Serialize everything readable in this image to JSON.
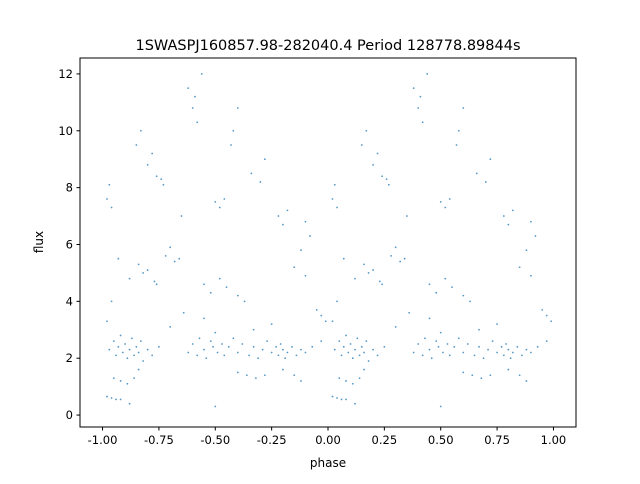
{
  "chart_data": {
    "type": "scatter",
    "title": "1SWASPJ160857.98-282040.4 Period 128778.89844s",
    "xlabel": "phase",
    "ylabel": "flux",
    "xlim": [
      -1.1,
      1.1
    ],
    "ylim": [
      -0.42,
      12.56
    ],
    "xticks": [
      "-1.00",
      "-0.75",
      "-0.50",
      "-0.25",
      "0.00",
      "0.25",
      "0.50",
      "0.75",
      "1.00"
    ],
    "xtick_values": [
      -1,
      -0.75,
      -0.5,
      -0.25,
      0,
      0.25,
      0.5,
      0.75,
      1
    ],
    "yticks": [
      "0",
      "2",
      "4",
      "6",
      "8",
      "10",
      "12"
    ],
    "ytick_values": [
      0,
      2,
      4,
      6,
      8,
      10,
      12
    ],
    "grid": false,
    "marker_color": "#1f77b4",
    "points": [
      [
        -0.97,
        2.3
      ],
      [
        -0.95,
        2.6
      ],
      [
        -0.94,
        2.1
      ],
      [
        -0.93,
        2.4
      ],
      [
        -0.92,
        2.8
      ],
      [
        -0.91,
        2.2
      ],
      [
        -0.9,
        2.5
      ],
      [
        -0.89,
        2.0
      ],
      [
        -0.88,
        2.3
      ],
      [
        -0.87,
        2.7
      ],
      [
        -0.86,
        2.1
      ],
      [
        -0.85,
        2.4
      ],
      [
        -0.84,
        2.2
      ],
      [
        -0.83,
        2.6
      ],
      [
        -0.82,
        1.9
      ],
      [
        -0.8,
        2.3
      ],
      [
        -0.78,
        2.1
      ],
      [
        -0.75,
        2.4
      ],
      [
        -0.62,
        2.2
      ],
      [
        -0.6,
        2.5
      ],
      [
        -0.58,
        2.1
      ],
      [
        -0.57,
        2.7
      ],
      [
        -0.55,
        2.3
      ],
      [
        -0.54,
        2.0
      ],
      [
        -0.52,
        2.6
      ],
      [
        -0.51,
        2.4
      ],
      [
        -0.5,
        2.9
      ],
      [
        -0.49,
        2.2
      ],
      [
        -0.47,
        2.5
      ],
      [
        -0.46,
        2.1
      ],
      [
        -0.44,
        2.4
      ],
      [
        -0.42,
        2.7
      ],
      [
        -0.4,
        2.2
      ],
      [
        -0.38,
        2.5
      ],
      [
        -0.35,
        2.1
      ],
      [
        -0.33,
        2.4
      ],
      [
        -0.31,
        2.0
      ],
      [
        -0.29,
        2.3
      ],
      [
        -0.27,
        2.6
      ],
      [
        -0.25,
        2.2
      ],
      [
        -0.23,
        2.4
      ],
      [
        -0.22,
        2.1
      ],
      [
        -0.21,
        2.5
      ],
      [
        -0.2,
        2.3
      ],
      [
        -0.19,
        2.0
      ],
      [
        -0.18,
        2.2
      ],
      [
        -0.16,
        2.4
      ],
      [
        -0.14,
        2.1
      ],
      [
        -0.12,
        2.3
      ],
      [
        -0.1,
        2.2
      ],
      [
        -0.07,
        2.4
      ],
      [
        -0.03,
        2.6
      ],
      [
        -0.98,
        0.65
      ],
      [
        -0.96,
        0.6
      ],
      [
        -0.94,
        0.55
      ],
      [
        -0.92,
        0.55
      ],
      [
        -0.95,
        1.3
      ],
      [
        -0.92,
        1.2
      ],
      [
        -0.89,
        1.1
      ],
      [
        -0.86,
        1.3
      ],
      [
        -0.84,
        1.6
      ],
      [
        -0.4,
        1.5
      ],
      [
        -0.36,
        1.4
      ],
      [
        -0.32,
        1.3
      ],
      [
        -0.28,
        1.4
      ],
      [
        -0.2,
        1.6
      ],
      [
        -0.15,
        1.4
      ],
      [
        -0.12,
        1.2
      ],
      [
        -0.88,
        0.4
      ],
      [
        -0.5,
        0.3
      ],
      [
        -0.98,
        7.6
      ],
      [
        -0.97,
        8.1
      ],
      [
        -0.96,
        7.3
      ],
      [
        -0.85,
        9.5
      ],
      [
        -0.83,
        10.0
      ],
      [
        -0.8,
        8.8
      ],
      [
        -0.78,
        9.2
      ],
      [
        -0.76,
        8.4
      ],
      [
        -0.74,
        8.3
      ],
      [
        -0.73,
        8.1
      ],
      [
        -0.62,
        11.5
      ],
      [
        -0.6,
        10.8
      ],
      [
        -0.59,
        11.2
      ],
      [
        -0.58,
        10.3
      ],
      [
        -0.56,
        12.0
      ],
      [
        -0.5,
        7.5
      ],
      [
        -0.48,
        7.3
      ],
      [
        -0.46,
        7.6
      ],
      [
        -0.43,
        9.5
      ],
      [
        -0.42,
        10.0
      ],
      [
        -0.34,
        8.5
      ],
      [
        -0.3,
        8.2
      ],
      [
        -0.28,
        9.0
      ],
      [
        -0.22,
        7.0
      ],
      [
        -0.2,
        6.7
      ],
      [
        -0.18,
        7.2
      ],
      [
        -0.1,
        6.8
      ],
      [
        -0.08,
        6.3
      ],
      [
        -0.65,
        7.0
      ],
      [
        -0.4,
        10.8
      ],
      [
        -0.98,
        3.3
      ],
      [
        -0.96,
        4.0
      ],
      [
        -0.93,
        5.5
      ],
      [
        -0.88,
        4.8
      ],
      [
        -0.84,
        5.3
      ],
      [
        -0.82,
        5.0
      ],
      [
        -0.8,
        5.1
      ],
      [
        -0.77,
        4.7
      ],
      [
        -0.76,
        4.6
      ],
      [
        -0.72,
        5.6
      ],
      [
        -0.7,
        5.9
      ],
      [
        -0.68,
        5.4
      ],
      [
        -0.66,
        5.5
      ],
      [
        -0.64,
        3.6
      ],
      [
        -0.55,
        4.6
      ],
      [
        -0.52,
        4.3
      ],
      [
        -0.48,
        4.8
      ],
      [
        -0.45,
        4.5
      ],
      [
        -0.4,
        4.2
      ],
      [
        -0.37,
        4.0
      ],
      [
        -0.33,
        3.0
      ],
      [
        -0.15,
        5.2
      ],
      [
        -0.12,
        5.8
      ],
      [
        -0.1,
        4.9
      ],
      [
        -0.05,
        3.7
      ],
      [
        -0.03,
        3.5
      ],
      [
        -0.01,
        3.3
      ],
      [
        -0.7,
        3.1
      ],
      [
        -0.25,
        3.2
      ],
      [
        -0.55,
        3.4
      ],
      [
        0.03,
        2.3
      ],
      [
        0.05,
        2.6
      ],
      [
        0.06,
        2.1
      ],
      [
        0.07,
        2.4
      ],
      [
        0.08,
        2.8
      ],
      [
        0.09,
        2.2
      ],
      [
        0.1,
        2.5
      ],
      [
        0.11,
        2.0
      ],
      [
        0.12,
        2.3
      ],
      [
        0.13,
        2.7
      ],
      [
        0.14,
        2.1
      ],
      [
        0.15,
        2.4
      ],
      [
        0.16,
        2.2
      ],
      [
        0.17,
        2.6
      ],
      [
        0.18,
        1.9
      ],
      [
        0.2,
        2.3
      ],
      [
        0.22,
        2.1
      ],
      [
        0.25,
        2.4
      ],
      [
        0.38,
        2.2
      ],
      [
        0.4,
        2.5
      ],
      [
        0.42,
        2.1
      ],
      [
        0.43,
        2.7
      ],
      [
        0.45,
        2.3
      ],
      [
        0.46,
        2.0
      ],
      [
        0.48,
        2.6
      ],
      [
        0.49,
        2.4
      ],
      [
        0.5,
        2.9
      ],
      [
        0.51,
        2.2
      ],
      [
        0.53,
        2.5
      ],
      [
        0.54,
        2.1
      ],
      [
        0.56,
        2.4
      ],
      [
        0.58,
        2.7
      ],
      [
        0.6,
        2.2
      ],
      [
        0.62,
        2.5
      ],
      [
        0.65,
        2.1
      ],
      [
        0.67,
        2.4
      ],
      [
        0.69,
        2.0
      ],
      [
        0.71,
        2.3
      ],
      [
        0.73,
        2.6
      ],
      [
        0.75,
        2.2
      ],
      [
        0.77,
        2.4
      ],
      [
        0.78,
        2.1
      ],
      [
        0.79,
        2.5
      ],
      [
        0.8,
        2.3
      ],
      [
        0.81,
        2.0
      ],
      [
        0.82,
        2.2
      ],
      [
        0.84,
        2.4
      ],
      [
        0.86,
        2.1
      ],
      [
        0.88,
        2.3
      ],
      [
        0.9,
        2.2
      ],
      [
        0.93,
        2.4
      ],
      [
        0.97,
        2.6
      ],
      [
        0.02,
        0.65
      ],
      [
        0.04,
        0.6
      ],
      [
        0.06,
        0.55
      ],
      [
        0.08,
        0.55
      ],
      [
        0.05,
        1.3
      ],
      [
        0.08,
        1.2
      ],
      [
        0.11,
        1.1
      ],
      [
        0.14,
        1.3
      ],
      [
        0.16,
        1.6
      ],
      [
        0.6,
        1.5
      ],
      [
        0.64,
        1.4
      ],
      [
        0.68,
        1.3
      ],
      [
        0.72,
        1.4
      ],
      [
        0.8,
        1.6
      ],
      [
        0.85,
        1.4
      ],
      [
        0.88,
        1.2
      ],
      [
        0.12,
        0.4
      ],
      [
        0.5,
        0.3
      ],
      [
        0.02,
        7.6
      ],
      [
        0.03,
        8.1
      ],
      [
        0.04,
        7.3
      ],
      [
        0.15,
        9.5
      ],
      [
        0.17,
        10.0
      ],
      [
        0.2,
        8.8
      ],
      [
        0.22,
        9.2
      ],
      [
        0.24,
        8.4
      ],
      [
        0.26,
        8.3
      ],
      [
        0.27,
        8.1
      ],
      [
        0.38,
        11.5
      ],
      [
        0.4,
        10.8
      ],
      [
        0.41,
        11.2
      ],
      [
        0.42,
        10.3
      ],
      [
        0.44,
        12.0
      ],
      [
        0.5,
        7.5
      ],
      [
        0.52,
        7.3
      ],
      [
        0.54,
        7.6
      ],
      [
        0.57,
        9.5
      ],
      [
        0.58,
        10.0
      ],
      [
        0.66,
        8.5
      ],
      [
        0.7,
        8.2
      ],
      [
        0.72,
        9.0
      ],
      [
        0.78,
        7.0
      ],
      [
        0.8,
        6.7
      ],
      [
        0.82,
        7.2
      ],
      [
        0.9,
        6.8
      ],
      [
        0.92,
        6.3
      ],
      [
        0.35,
        7.0
      ],
      [
        0.6,
        10.8
      ],
      [
        0.02,
        3.3
      ],
      [
        0.04,
        4.0
      ],
      [
        0.07,
        5.5
      ],
      [
        0.12,
        4.8
      ],
      [
        0.16,
        5.3
      ],
      [
        0.18,
        5.0
      ],
      [
        0.2,
        5.1
      ],
      [
        0.23,
        4.7
      ],
      [
        0.24,
        4.6
      ],
      [
        0.28,
        5.6
      ],
      [
        0.3,
        5.9
      ],
      [
        0.32,
        5.4
      ],
      [
        0.34,
        5.5
      ],
      [
        0.36,
        3.6
      ],
      [
        0.45,
        4.6
      ],
      [
        0.48,
        4.3
      ],
      [
        0.52,
        4.8
      ],
      [
        0.55,
        4.5
      ],
      [
        0.6,
        4.2
      ],
      [
        0.63,
        4.0
      ],
      [
        0.67,
        3.0
      ],
      [
        0.85,
        5.2
      ],
      [
        0.88,
        5.8
      ],
      [
        0.9,
        4.9
      ],
      [
        0.95,
        3.7
      ],
      [
        0.97,
        3.5
      ],
      [
        0.99,
        3.3
      ],
      [
        0.3,
        3.1
      ],
      [
        0.75,
        3.2
      ],
      [
        0.45,
        3.4
      ]
    ]
  }
}
